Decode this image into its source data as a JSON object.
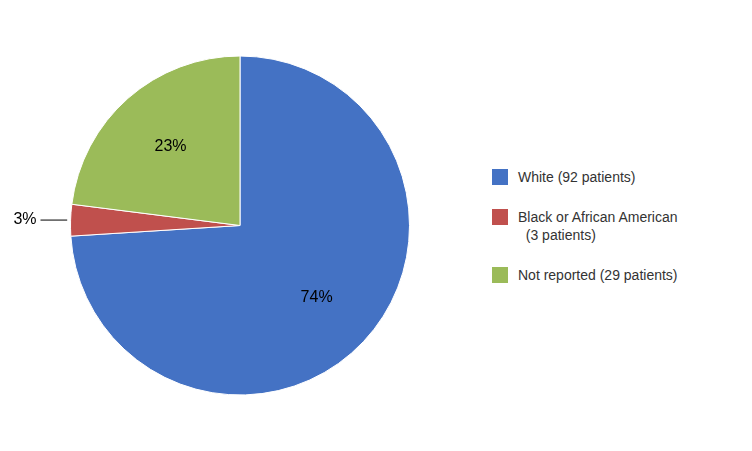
{
  "chart_data": {
    "type": "pie",
    "categories": [
      "White (92 patients)",
      "Black or African American\n  (3 patients)",
      "Not reported (29 patients)"
    ],
    "values": [
      74,
      3,
      23
    ],
    "value_labels": [
      "74%",
      "3%",
      "23%"
    ],
    "colors": [
      "#4472C4",
      "#C0504D",
      "#9BBB59"
    ],
    "data_labels": true,
    "legend": "right"
  }
}
